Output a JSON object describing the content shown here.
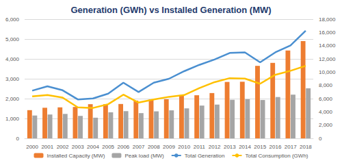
{
  "chart_data": {
    "type": "bar",
    "title": "Generation (GWh) vs Installed Generation (MW)",
    "categories": [
      "2000",
      "2001",
      "2002",
      "2003",
      "2004",
      "2005",
      "2006",
      "2007",
      "2008",
      "2009",
      "2010",
      "2011",
      "2012",
      "2013",
      "2014",
      "2015",
      "2016",
      "2017",
      "2018"
    ],
    "series": [
      {
        "name": "Installed Capacity (MW)",
        "type": "bar",
        "color": "#ed7d31",
        "values": [
          1420,
          1540,
          1560,
          1580,
          1720,
          1720,
          1730,
          1900,
          1960,
          1970,
          2180,
          2170,
          2280,
          2840,
          2850,
          3650,
          3800,
          4420,
          4900
        ]
      },
      {
        "name": "Peak load (MW)",
        "type": "bar",
        "color": "#a5a5a5",
        "values": [
          1150,
          1200,
          1230,
          1130,
          1040,
          1310,
          1370,
          1270,
          1360,
          1410,
          1510,
          1650,
          1700,
          1940,
          1970,
          1930,
          2080,
          2200,
          2520
        ]
      },
      {
        "name": "Total Generation",
        "type": "line",
        "axis": "y2",
        "color": "#4a8fd0",
        "values": [
          7200,
          7860,
          7260,
          5880,
          6030,
          6750,
          8400,
          6990,
          8400,
          9000,
          10140,
          11100,
          11910,
          12900,
          12990,
          11490,
          12990,
          14040,
          16260
        ]
      },
      {
        "name": "Total Consumption (GWh)",
        "type": "line",
        "axis": "y2",
        "color": "#ffc000",
        "values": [
          6330,
          6540,
          6150,
          4680,
          4590,
          5160,
          6600,
          5400,
          5880,
          6270,
          6540,
          7590,
          8490,
          9090,
          9030,
          8250,
          9600,
          10200,
          10950
        ]
      }
    ],
    "ylim": [
      0,
      6000
    ],
    "yticks": [
      0,
      {
        "value": 1000,
        "label": "1,000"
      },
      {
        "value": 2000,
        "label": "2,000"
      },
      {
        "value": 3000,
        "label": "3,000"
      },
      {
        "value": 4000,
        "label": "4,000"
      },
      {
        "value": 5000,
        "label": "5,000"
      },
      {
        "value": 6000,
        "label": "6,000"
      }
    ],
    "y2lim": [
      0,
      18000
    ],
    "y2ticks": [
      0,
      {
        "value": 2000,
        "label": "2,000"
      },
      {
        "value": 4000,
        "label": "4,000"
      },
      {
        "value": 6000,
        "label": "6,000"
      },
      {
        "value": 8000,
        "label": "8,000"
      },
      {
        "value": 10000,
        "label": "10,000"
      },
      {
        "value": 12000,
        "label": "12,000"
      },
      {
        "value": 14000,
        "label": "14,000"
      },
      {
        "value": 16000,
        "label": "16,000"
      },
      {
        "value": 18000,
        "label": "18,000"
      }
    ],
    "grid": true,
    "legend": "bottom"
  }
}
